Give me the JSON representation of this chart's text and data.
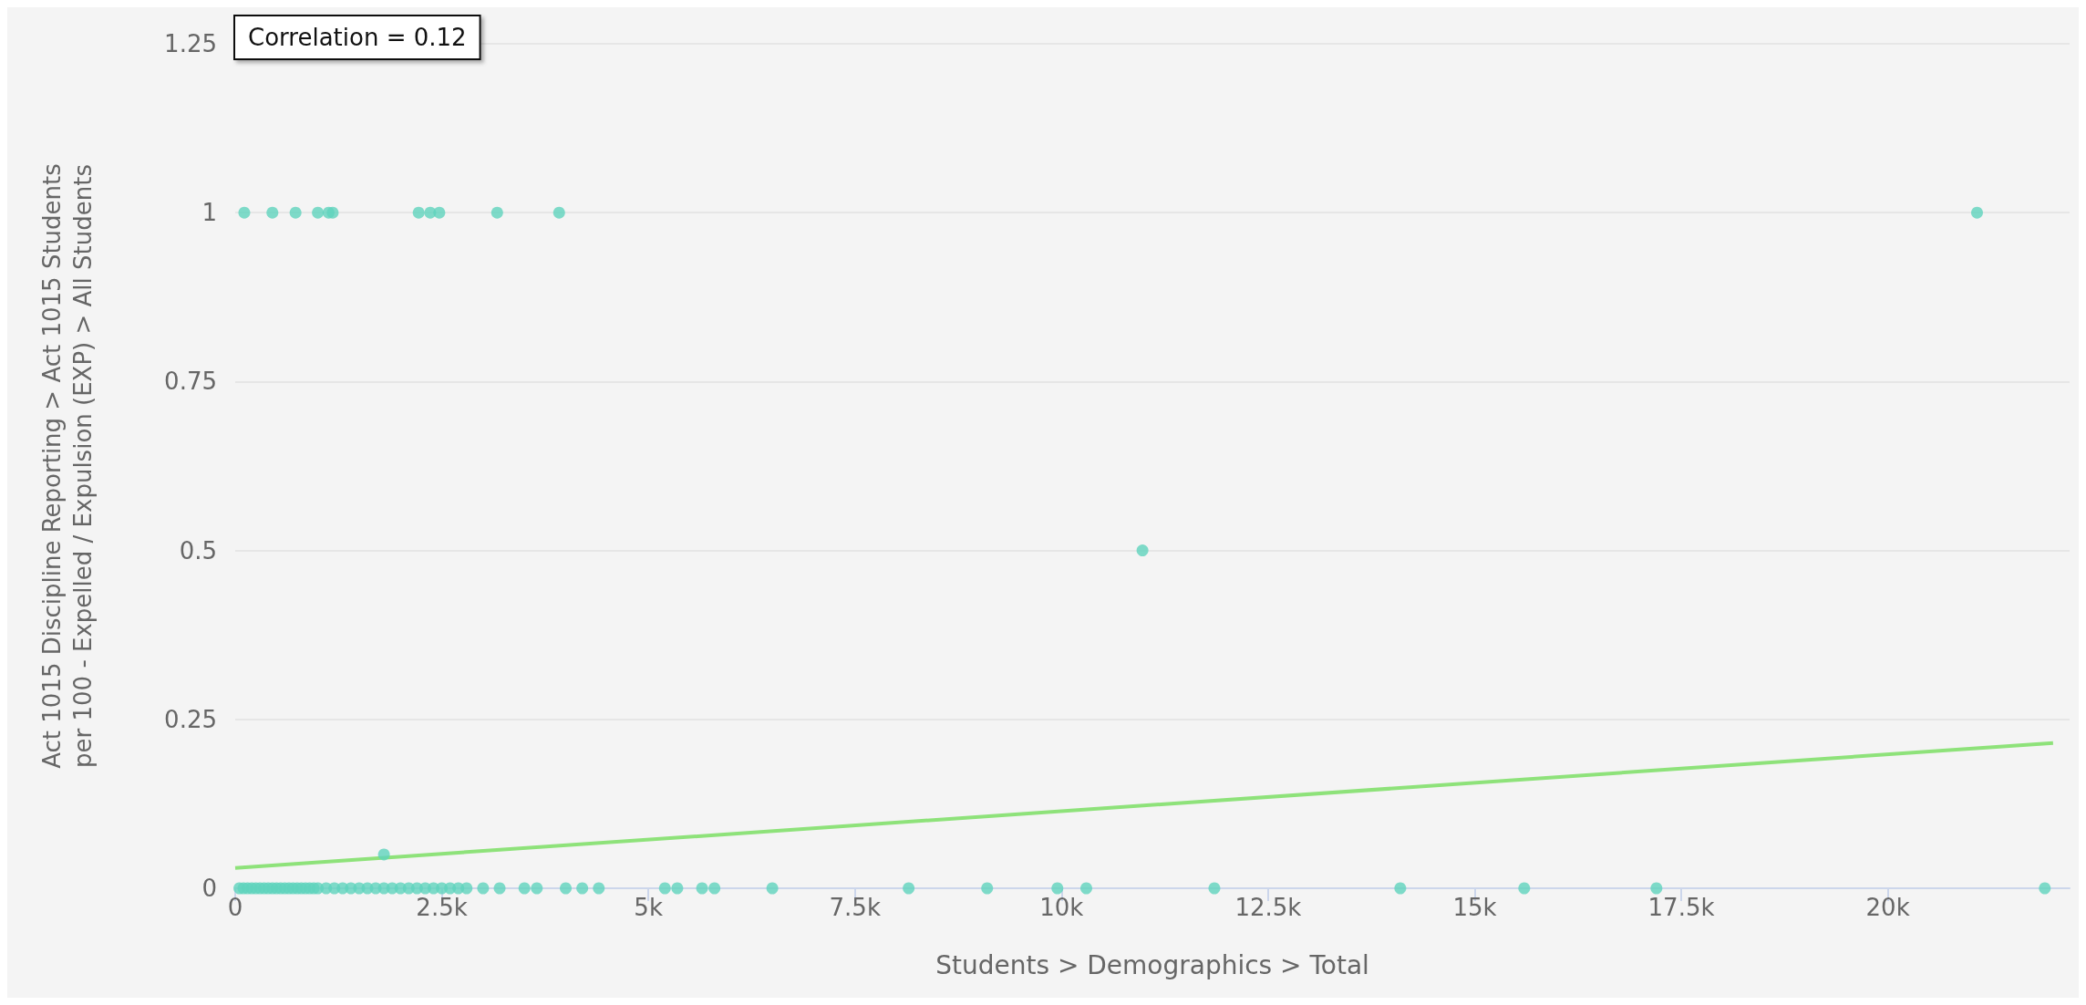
{
  "chart_data": {
    "type": "scatter",
    "xlabel": "Students > Demographics > Total",
    "ylabel": "Act 1015 Discipline Reporting > Act 1015 Students\nper 100 - Expelled / Expulsion (EXP) > All Students",
    "annotations": [
      "Correlation = 0.12"
    ],
    "xlim": [
      0,
      22200
    ],
    "ylim": [
      0,
      1.25
    ],
    "xticks": [
      {
        "value": 0,
        "label": "0"
      },
      {
        "value": 2500,
        "label": "2.5k"
      },
      {
        "value": 5000,
        "label": "5k"
      },
      {
        "value": 7500,
        "label": "7.5k"
      },
      {
        "value": 10000,
        "label": "10k"
      },
      {
        "value": 12500,
        "label": "12.5k"
      },
      {
        "value": 15000,
        "label": "15k"
      },
      {
        "value": 17500,
        "label": "17.5k"
      },
      {
        "value": 20000,
        "label": "20k"
      }
    ],
    "yticks": [
      0,
      0.25,
      0.5,
      0.75,
      1,
      1.25
    ],
    "grid": "y",
    "marker": "circle",
    "series": [
      {
        "color": "#5fd3bd",
        "x": [
          110,
          450,
          730,
          1000,
          1130,
          1180,
          2220,
          2360,
          2470,
          3170,
          3920,
          21080,
          10980,
          1800,
          50,
          100,
          150,
          200,
          250,
          300,
          350,
          400,
          450,
          500,
          550,
          600,
          650,
          700,
          750,
          800,
          850,
          900,
          950,
          1000,
          1100,
          1200,
          1300,
          1400,
          1500,
          1600,
          1700,
          1800,
          1900,
          2000,
          2100,
          2200,
          2300,
          2400,
          2500,
          2600,
          2700,
          2800,
          3000,
          3200,
          3500,
          3650,
          4000,
          4200,
          4400,
          5200,
          5350,
          5650,
          5800,
          6500,
          8150,
          9100,
          9950,
          10300,
          11850,
          14100,
          15600,
          17200,
          21900
        ],
        "values": [
          1,
          1,
          1,
          1,
          1,
          1,
          1,
          1,
          1,
          1,
          1,
          1,
          0.5,
          0.05,
          0,
          0,
          0,
          0,
          0,
          0,
          0,
          0,
          0,
          0,
          0,
          0,
          0,
          0,
          0,
          0,
          0,
          0,
          0,
          0,
          0,
          0,
          0,
          0,
          0,
          0,
          0,
          0,
          0,
          0,
          0,
          0,
          0,
          0,
          0,
          0,
          0,
          0,
          0,
          0,
          0,
          0,
          0,
          0,
          0,
          0,
          0,
          0,
          0,
          0,
          0,
          0,
          0,
          0,
          0,
          0,
          0,
          0,
          0
        ]
      },
      {
        "type": "line",
        "color": "#8ee27a",
        "marker": "none",
        "x": [
          0,
          22000
        ],
        "values": [
          0.03,
          0.215
        ]
      }
    ]
  }
}
